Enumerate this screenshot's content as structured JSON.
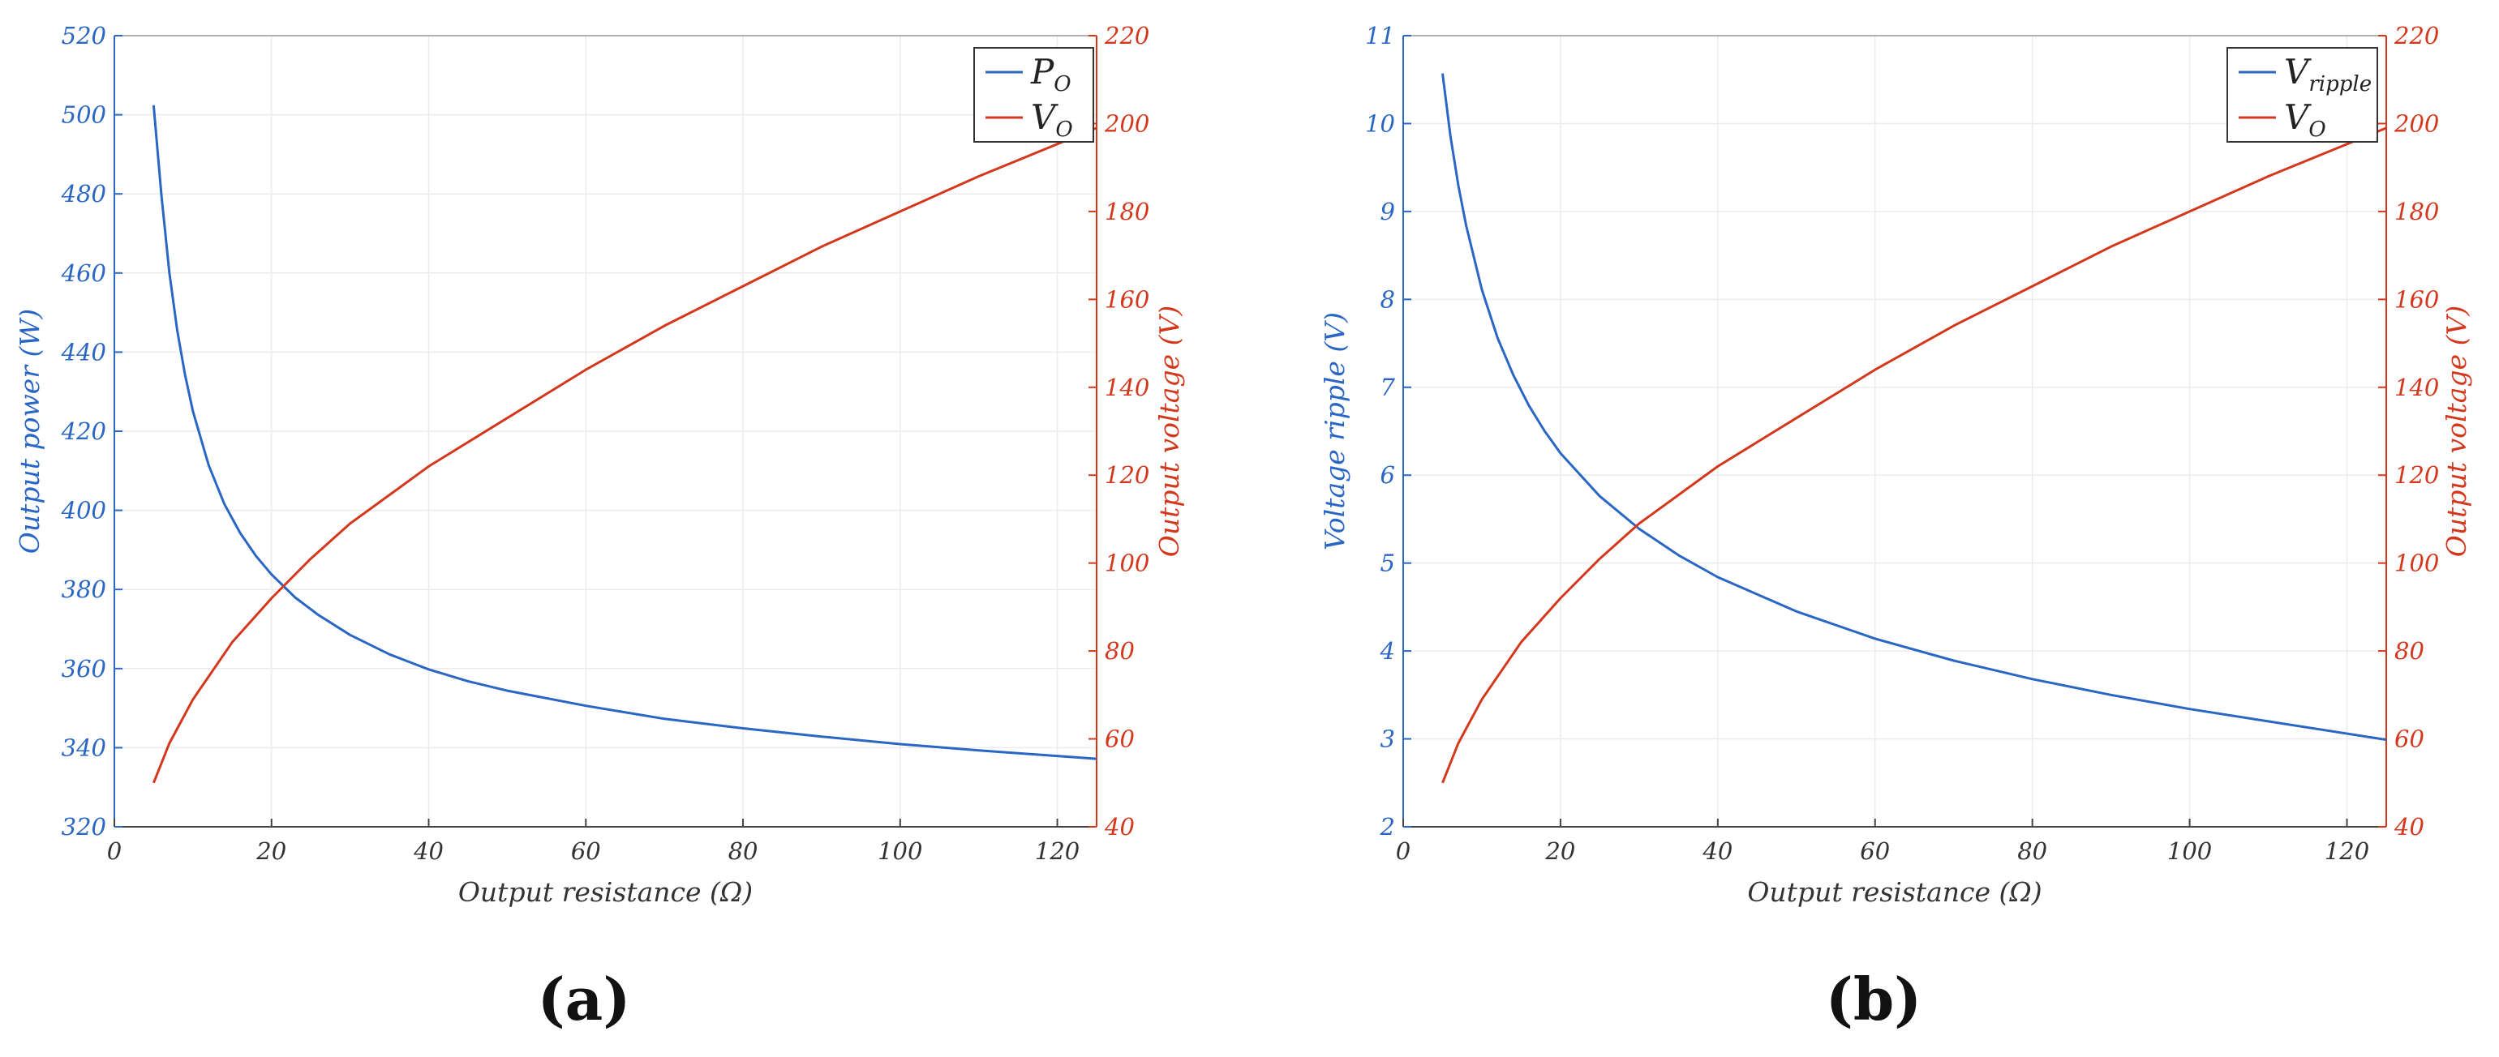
{
  "colors": {
    "blue": "#2a66c4",
    "red": "#d4381c",
    "grid": "#ececec",
    "frame": "#9a9a9a",
    "axis_text": "#333333"
  },
  "chart_data": [
    {
      "type": "line",
      "panel_label": "(a)",
      "xlabel": "Output resistance (Ω)",
      "xlim": [
        0,
        125
      ],
      "xticks": [
        "0",
        "20",
        "40",
        "60",
        "80",
        "100",
        "120"
      ],
      "ylabel_left": "Output power (W)",
      "ylim_left": [
        320,
        520
      ],
      "yticks_left": [
        "320",
        "340",
        "360",
        "380",
        "400",
        "420",
        "440",
        "460",
        "480",
        "500",
        "520"
      ],
      "ylabel_right": "Output voltage (V)",
      "ylim_right": [
        40,
        220
      ],
      "yticks_right": [
        "40",
        "60",
        "80",
        "100",
        "120",
        "140",
        "160",
        "180",
        "200",
        "220"
      ],
      "grid": true,
      "legend_position": "top-right",
      "series": [
        {
          "name": "P",
          "name_sub": "O",
          "axis": "left",
          "color": "#2a66c4",
          "x": [
            5,
            6,
            7,
            8,
            9,
            10,
            12,
            14,
            16,
            18,
            20,
            23,
            26,
            30,
            35,
            40,
            45,
            50,
            60,
            70,
            80,
            90,
            100,
            110,
            125
          ],
          "y": [
            502.4,
            479.5,
            460.1,
            445.5,
            434.2,
            425.0,
            411.4,
            401.6,
            394.3,
            388.5,
            383.8,
            378.0,
            373.5,
            368.5,
            363.6,
            359.8,
            356.8,
            354.4,
            350.6,
            347.3,
            344.9,
            342.8,
            340.9,
            339.3,
            337.2
          ]
        },
        {
          "name": "V",
          "name_sub": "O",
          "axis": "right",
          "color": "#d4381c",
          "x": [
            5,
            7,
            10,
            15,
            20,
            25,
            30,
            40,
            50,
            60,
            70,
            80,
            90,
            100,
            110,
            125
          ],
          "y": [
            50,
            59,
            69,
            82,
            92,
            101,
            109,
            122,
            133,
            144,
            154,
            163,
            172,
            180,
            188,
            199
          ]
        }
      ]
    },
    {
      "type": "line",
      "panel_label": "(b)",
      "xlabel": "Output resistance (Ω)",
      "xlim": [
        0,
        125
      ],
      "xticks": [
        "0",
        "20",
        "40",
        "60",
        "80",
        "100",
        "120"
      ],
      "ylabel_left": "Voltage ripple (V)",
      "ylim_left": [
        2,
        11
      ],
      "yticks_left": [
        "2",
        "3",
        "4",
        "5",
        "6",
        "7",
        "8",
        "9",
        "10",
        "11"
      ],
      "ylabel_right": "Output voltage (V)",
      "ylim_right": [
        40,
        220
      ],
      "yticks_right": [
        "40",
        "60",
        "80",
        "100",
        "120",
        "140",
        "160",
        "180",
        "200",
        "220"
      ],
      "grid": true,
      "legend_position": "top-right",
      "series": [
        {
          "name": "V",
          "name_sub": "ripple",
          "axis": "left",
          "color": "#2a66c4",
          "x": [
            5,
            6,
            7,
            8,
            10,
            12,
            14,
            16,
            18,
            20,
            25,
            30,
            35,
            40,
            50,
            60,
            70,
            80,
            90,
            100,
            110,
            125
          ],
          "y": [
            10.57,
            9.86,
            9.3,
            8.84,
            8.11,
            7.56,
            7.14,
            6.79,
            6.5,
            6.25,
            5.76,
            5.39,
            5.09,
            4.84,
            4.45,
            4.14,
            3.89,
            3.68,
            3.5,
            3.34,
            3.2,
            2.99
          ]
        },
        {
          "name": "V",
          "name_sub": "O",
          "axis": "right",
          "color": "#d4381c",
          "x": [
            5,
            7,
            10,
            15,
            20,
            25,
            30,
            40,
            50,
            60,
            70,
            80,
            90,
            100,
            110,
            125
          ],
          "y": [
            50,
            59,
            69,
            82,
            92,
            101,
            109,
            122,
            133,
            144,
            154,
            163,
            172,
            180,
            188,
            199
          ]
        }
      ]
    }
  ]
}
